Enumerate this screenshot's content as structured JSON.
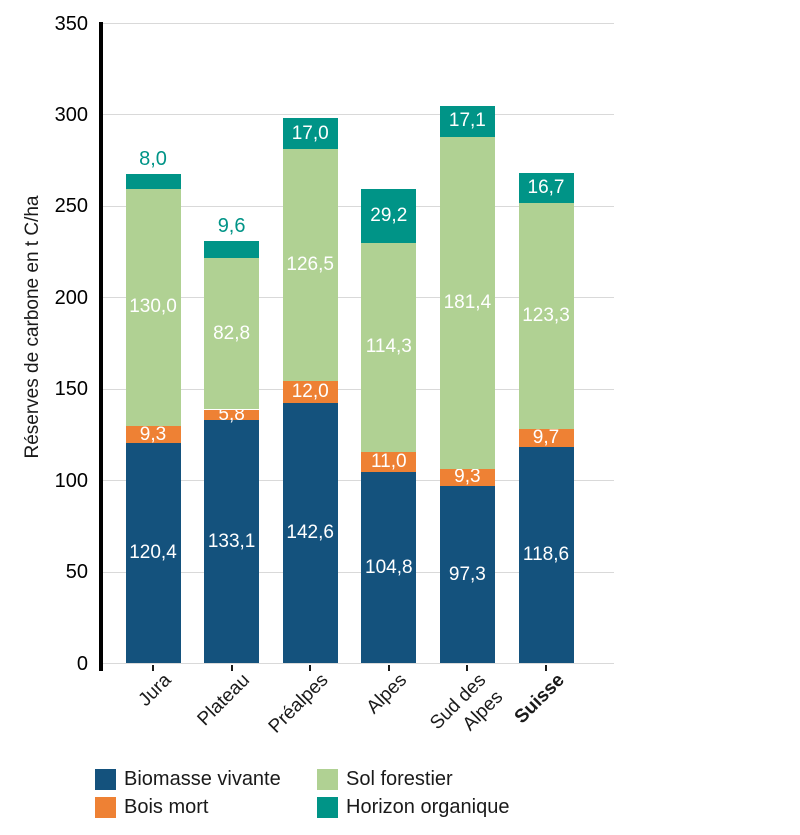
{
  "chart_data": {
    "type": "bar",
    "stacked": true,
    "title": "",
    "ylabel": "Réserves de carbone en t C/ha",
    "xlabel": "",
    "ylim": [
      0,
      350
    ],
    "ytick_step": 50,
    "grid": "horizontal",
    "legend_position": "bottom-left",
    "decimal_separator": ",",
    "categories": [
      "Jura",
      "Plateau",
      "Préalpes",
      "Alpes",
      "Sud des\nAlpes",
      "Suisse"
    ],
    "categories_bold": [
      false,
      false,
      false,
      false,
      false,
      true
    ],
    "series": [
      {
        "name": "Biomasse vivante",
        "color": "#14527d",
        "values": [
          120.4,
          133.1,
          142.6,
          104.8,
          97.3,
          118.6
        ]
      },
      {
        "name": "Bois mort",
        "color": "#ee8134",
        "values": [
          9.3,
          5.8,
          12.0,
          11.0,
          9.3,
          9.7
        ]
      },
      {
        "name": "Sol forestier",
        "color": "#b0d193",
        "values": [
          130.0,
          82.8,
          126.5,
          114.3,
          181.4,
          123.3
        ]
      },
      {
        "name": "Horizon organique",
        "color": "#009487",
        "values": [
          8.0,
          9.6,
          17.0,
          29.2,
          17.1,
          16.7
        ]
      }
    ],
    "colors": {
      "grid": "#d9d9d9",
      "axis": "#000000",
      "text": "#1a1a1a",
      "bar_value_label": "#ffffff"
    }
  }
}
